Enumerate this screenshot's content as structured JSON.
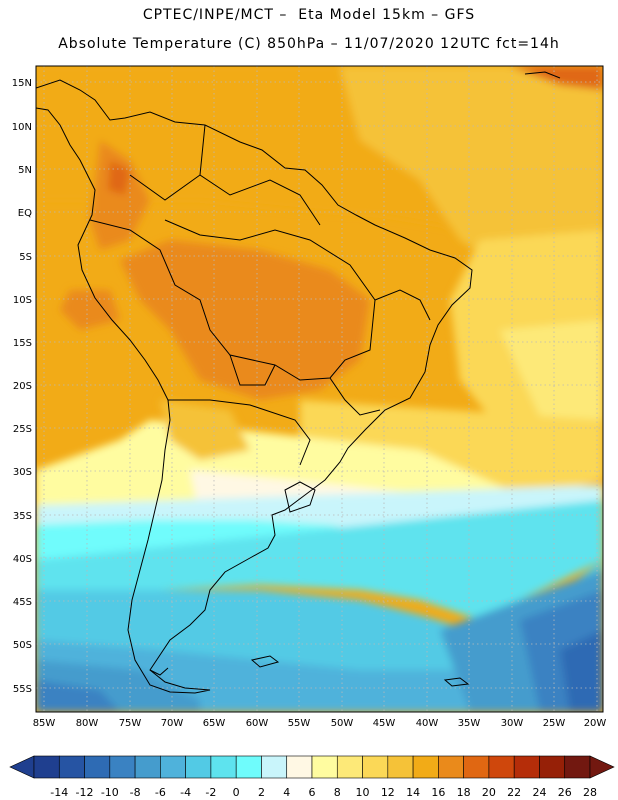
{
  "header": {
    "line1": "CPTEC/INPE/MCT –  Eta Model 15km – GFS",
    "line2": "Absolute Temperature (C) 850hPa – 11/07/2020 12UTC fct=14h"
  },
  "map": {
    "lat_labels": [
      "15N",
      "10N",
      "5N",
      "EQ",
      "5S",
      "10S",
      "15S",
      "20S",
      "25S",
      "30S",
      "35S",
      "40S",
      "45S",
      "50S",
      "55S"
    ],
    "lon_labels": [
      "85W",
      "80W",
      "75W",
      "70W",
      "65W",
      "60W",
      "55W",
      "50W",
      "45W",
      "40W",
      "35W",
      "30W",
      "25W",
      "20W"
    ],
    "lat_range": [
      -57,
      16
    ],
    "lon_range": [
      -86,
      -19
    ],
    "grid": true
  },
  "colorbar": {
    "ticks": [
      "-14",
      "-12",
      "-10",
      "-8",
      "-6",
      "-4",
      "-2",
      "0",
      "2",
      "4",
      "6",
      "8",
      "10",
      "12",
      "14",
      "16",
      "18",
      "20",
      "22",
      "24",
      "26",
      "28"
    ],
    "colors": [
      "#1f3f8f",
      "#2654a3",
      "#2e6bb4",
      "#3a82c2",
      "#459ccd",
      "#4fb2db",
      "#52cae5",
      "#5ee3ee",
      "#6ffcfc",
      "#c9f5fb",
      "#fff8e4",
      "#fffca0",
      "#fde978",
      "#fbd857",
      "#f5c238",
      "#f2ab17",
      "#ea8a1b",
      "#e06712",
      "#cf470c",
      "#b52d09",
      "#962007",
      "#721810"
    ]
  }
}
